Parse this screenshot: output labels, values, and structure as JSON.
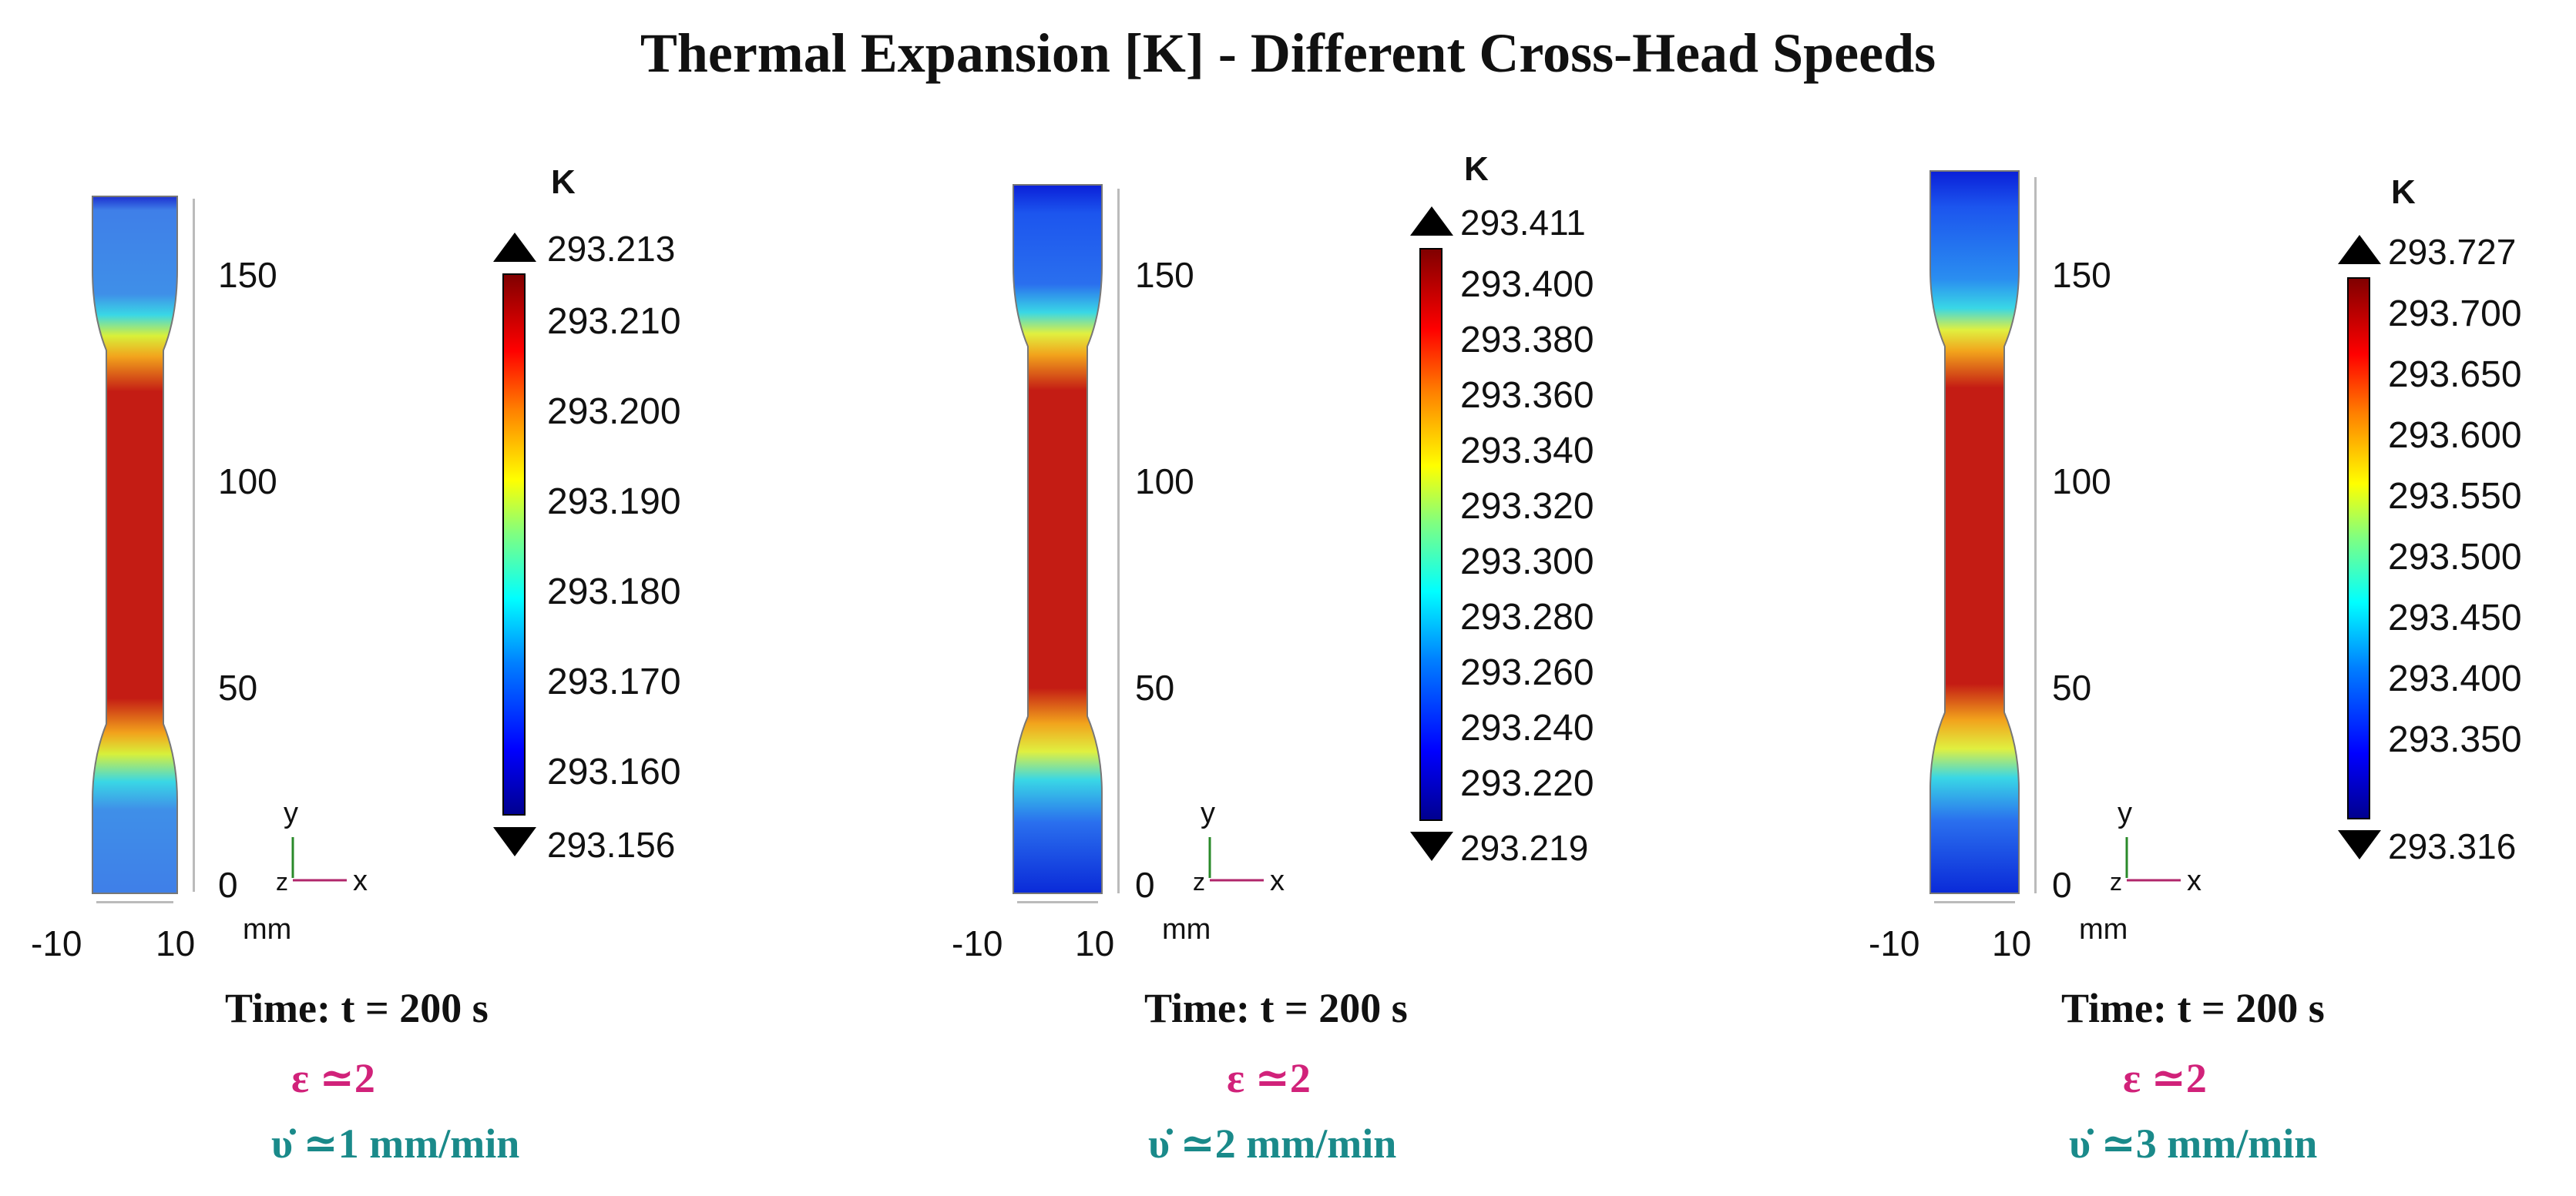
{
  "title": "Thermal Expansion [K] - Different Cross-Head Speeds",
  "colors": {
    "strain": "#d1227a",
    "speed": "#1a8a8a"
  },
  "panels": [
    {
      "unit": "K",
      "max_label": "293.213",
      "min_label": "293.156",
      "ticks": [
        "293.210",
        "293.200",
        "293.190",
        "293.180",
        "293.170",
        "293.160"
      ],
      "y_ticks": [
        "150",
        "100",
        "50",
        "0"
      ],
      "x_ticks": [
        "-10",
        "10"
      ],
      "x_unit": "mm",
      "axis_x": "x",
      "axis_y": "y",
      "axis_z": "z",
      "time": "Time: t = 200 s",
      "strain": "ε ≃2",
      "speed": "υ̇ ≃1 mm/min"
    },
    {
      "unit": "K",
      "max_label": "293.411",
      "min_label": "293.219",
      "ticks": [
        "293.400",
        "293.380",
        "293.360",
        "293.340",
        "293.320",
        "293.300",
        "293.280",
        "293.260",
        "293.240",
        "293.220"
      ],
      "y_ticks": [
        "150",
        "100",
        "50",
        "0"
      ],
      "x_ticks": [
        "-10",
        "10"
      ],
      "x_unit": "mm",
      "axis_x": "x",
      "axis_y": "y",
      "axis_z": "z",
      "time": "Time: t = 200 s",
      "strain": "ε ≃2",
      "speed": "υ̇ ≃2 mm/min"
    },
    {
      "unit": "K",
      "max_label": "293.727",
      "min_label": "293.316",
      "ticks": [
        "293.700",
        "293.650",
        "293.600",
        "293.550",
        "293.500",
        "293.450",
        "293.400",
        "293.350"
      ],
      "y_ticks": [
        "150",
        "100",
        "50",
        "0"
      ],
      "x_ticks": [
        "-10",
        "10"
      ],
      "x_unit": "mm",
      "axis_x": "x",
      "axis_y": "y",
      "axis_z": "z",
      "time": "Time: t = 200 s",
      "strain": "ε ≃2",
      "speed": "υ̇ ≃3 mm/min"
    }
  ]
}
